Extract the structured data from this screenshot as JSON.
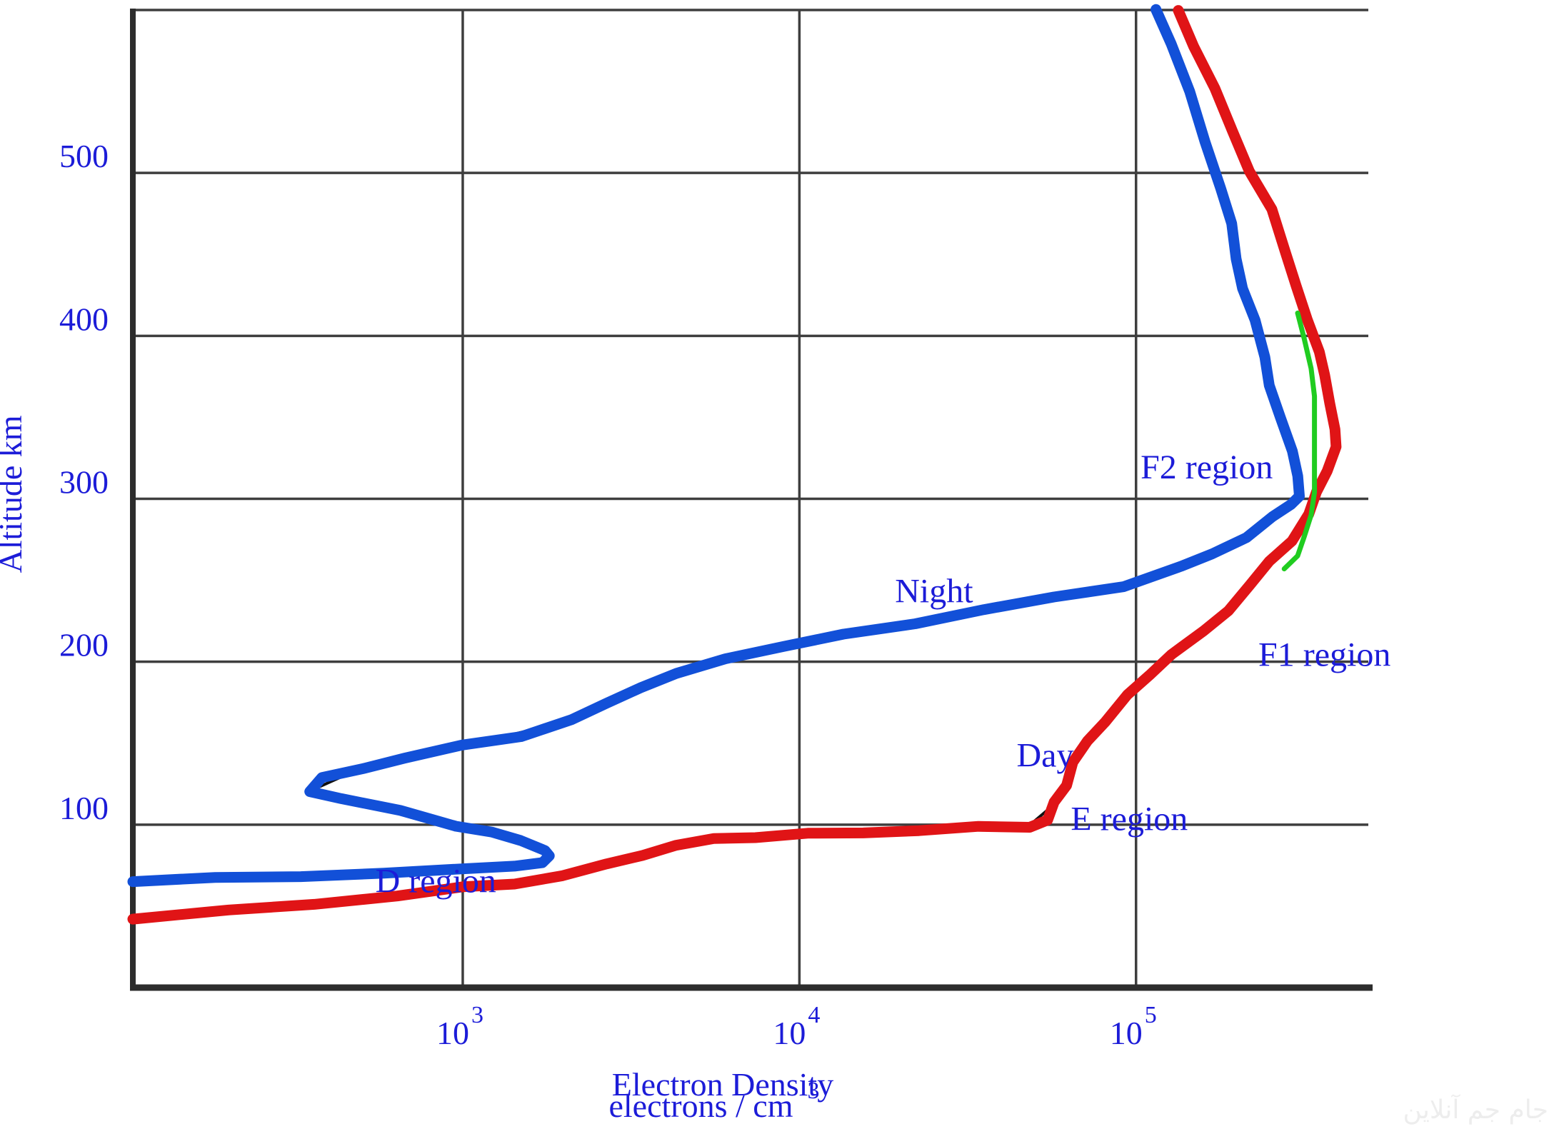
{
  "chart_data": {
    "type": "line",
    "title": "",
    "xlabel_line1": "Electron Density",
    "xlabel_line2": "electrons / cm",
    "xlabel_exponent": "3",
    "ylabel": "Altitude km",
    "x_scale": "log10",
    "xlim_log10": [
      2.02,
      5.69
    ],
    "ylim": [
      0,
      600
    ],
    "grid": true,
    "legend": "none",
    "x_ticks": [
      {
        "log": 3,
        "base": "10",
        "exp": "3"
      },
      {
        "log": 4,
        "base": "10",
        "exp": "4"
      },
      {
        "log": 5,
        "base": "10",
        "exp": "5"
      }
    ],
    "y_ticks": [
      {
        "value": 100,
        "label": "100"
      },
      {
        "value": 200,
        "label": "200"
      },
      {
        "value": 300,
        "label": "300"
      },
      {
        "value": 400,
        "label": "400"
      },
      {
        "value": 500,
        "label": "500"
      }
    ],
    "series": [
      {
        "name": "Night",
        "color": "#1250d8",
        "stroke_width": 15,
        "underlay": true,
        "points_log10_alt": [
          [
            2.02,
            66
          ],
          [
            2.26,
            67
          ],
          [
            2.52,
            68
          ],
          [
            2.77,
            71
          ],
          [
            3.0,
            72
          ],
          [
            3.15,
            75
          ],
          [
            3.24,
            77
          ],
          [
            3.26,
            80
          ],
          [
            3.24,
            85
          ],
          [
            3.17,
            90
          ],
          [
            3.09,
            95
          ],
          [
            2.98,
            100
          ],
          [
            2.81,
            108
          ],
          [
            2.64,
            116
          ],
          [
            2.55,
            121
          ],
          [
            2.58,
            128
          ],
          [
            2.7,
            135
          ],
          [
            2.83,
            141
          ],
          [
            3.0,
            148
          ],
          [
            3.17,
            155
          ],
          [
            3.32,
            164
          ],
          [
            3.43,
            174
          ],
          [
            3.53,
            185
          ],
          [
            3.63,
            192
          ],
          [
            3.78,
            202
          ],
          [
            3.96,
            210
          ],
          [
            4.13,
            216
          ],
          [
            4.34,
            224
          ],
          [
            4.55,
            232
          ],
          [
            4.76,
            239
          ],
          [
            4.96,
            247
          ],
          [
            5.13,
            258
          ],
          [
            5.23,
            266
          ],
          [
            5.33,
            277
          ],
          [
            5.4,
            288
          ],
          [
            5.46,
            297
          ],
          [
            5.49,
            302
          ],
          [
            5.48,
            313
          ],
          [
            5.46,
            330
          ],
          [
            5.43,
            350
          ],
          [
            5.4,
            369
          ],
          [
            5.38,
            388
          ],
          [
            5.35,
            409
          ],
          [
            5.32,
            429
          ],
          [
            5.3,
            448
          ],
          [
            5.28,
            468
          ],
          [
            5.25,
            491
          ],
          [
            5.21,
            519
          ],
          [
            5.16,
            549
          ],
          [
            5.1,
            580
          ],
          [
            5.06,
            600
          ]
        ]
      },
      {
        "name": "Day",
        "color": "#e01416",
        "stroke_width": 15,
        "underlay": true,
        "points_log10_alt": [
          [
            2.02,
            43
          ],
          [
            2.3,
            47
          ],
          [
            2.56,
            51
          ],
          [
            2.81,
            57
          ],
          [
            3.0,
            61
          ],
          [
            3.15,
            64
          ],
          [
            3.3,
            69
          ],
          [
            3.43,
            75
          ],
          [
            3.53,
            82
          ],
          [
            3.63,
            87
          ],
          [
            3.75,
            91
          ],
          [
            3.87,
            93
          ],
          [
            4.02,
            94
          ],
          [
            4.19,
            95
          ],
          [
            4.36,
            97
          ],
          [
            4.53,
            98
          ],
          [
            4.68,
            99
          ],
          [
            4.74,
            103
          ],
          [
            4.76,
            113
          ],
          [
            4.79,
            125
          ],
          [
            4.81,
            138
          ],
          [
            4.86,
            151
          ],
          [
            4.91,
            164
          ],
          [
            4.97,
            179
          ],
          [
            5.04,
            192
          ],
          [
            5.11,
            205
          ],
          [
            5.2,
            218
          ],
          [
            5.27,
            232
          ],
          [
            5.34,
            247
          ],
          [
            5.4,
            261
          ],
          [
            5.46,
            275
          ],
          [
            5.51,
            290
          ],
          [
            5.54,
            304
          ],
          [
            5.57,
            318
          ],
          [
            5.59,
            331
          ],
          [
            5.59,
            343
          ],
          [
            5.58,
            359
          ],
          [
            5.56,
            375
          ],
          [
            5.54,
            391
          ],
          [
            5.51,
            410
          ],
          [
            5.48,
            430
          ],
          [
            5.44,
            453
          ],
          [
            5.4,
            477
          ],
          [
            5.34,
            501
          ],
          [
            5.29,
            526
          ],
          [
            5.23,
            551
          ],
          [
            5.17,
            578
          ],
          [
            5.13,
            600
          ]
        ]
      },
      {
        "name": "Green overlay (unlabeled F-peak segment)",
        "color": "#20cc20",
        "stroke_width": 7,
        "underlay": false,
        "points_log10_alt": [
          [
            5.48,
            414
          ],
          [
            5.5,
            398
          ],
          [
            5.52,
            380
          ],
          [
            5.53,
            363
          ],
          [
            5.53,
            343
          ],
          [
            5.53,
            323
          ],
          [
            5.53,
            304
          ],
          [
            5.52,
            290
          ],
          [
            5.5,
            277
          ],
          [
            5.48,
            265
          ],
          [
            5.44,
            257
          ]
        ]
      }
    ],
    "annotations": [
      {
        "text": "F2 region",
        "log": 5.21,
        "alt": 320
      },
      {
        "text": "F1 region",
        "log": 5.56,
        "alt": 205
      },
      {
        "text": "Night",
        "log": 4.4,
        "alt": 244
      },
      {
        "text": "Day",
        "log": 4.73,
        "alt": 143
      },
      {
        "text": "E region",
        "log": 4.98,
        "alt": 104
      },
      {
        "text": "D region",
        "log": 2.92,
        "alt": 66
      }
    ]
  },
  "colors": {
    "grid": "#3e3e3e",
    "axis": "#2d2d2d",
    "label_text": "#1c1cd8",
    "underlay_black": "#111111",
    "watermark": "#ededed"
  },
  "watermark": {
    "text": "جام جم آنلاین"
  }
}
